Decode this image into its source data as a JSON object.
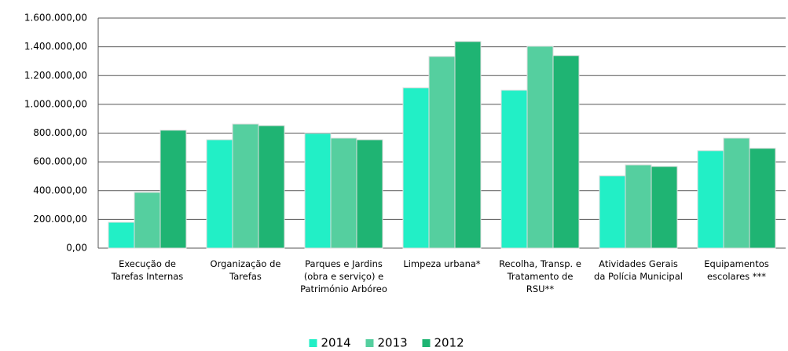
{
  "chart_data": {
    "type": "bar",
    "categories": [
      "Execução de Tarefas Internas",
      "Organização de Tarefas",
      "Parques e Jardins (obra e serviço) e Património Arbóreo",
      "Limpeza urbana*",
      "Recolha, Transp. e Tratamento de RSU**",
      "Atividades Gerais da Polícia Municipal",
      "Equipamentos escolares ***"
    ],
    "series": [
      {
        "name": "2014",
        "color": "#22efc6",
        "values": [
          180000,
          754000,
          798000,
          1115000,
          1098000,
          503000,
          678000
        ]
      },
      {
        "name": "2013",
        "color": "#55cf9f",
        "values": [
          388000,
          863000,
          765000,
          1333000,
          1404000,
          579000,
          765000
        ]
      },
      {
        "name": "2012",
        "color": "#1fb473",
        "values": [
          820000,
          852000,
          754000,
          1437000,
          1339000,
          568000,
          694000
        ]
      }
    ],
    "ylim": [
      0,
      1600000
    ],
    "yticks": [
      {
        "value": 0,
        "label": "0,00"
      },
      {
        "value": 200000,
        "label": "200.000,00"
      },
      {
        "value": 400000,
        "label": "400.000,00"
      },
      {
        "value": 600000,
        "label": "600.000,00"
      },
      {
        "value": 800000,
        "label": "800.000,00"
      },
      {
        "value": 1000000,
        "label": "1.000.000,00"
      },
      {
        "value": 1200000,
        "label": "1.200.000,00"
      },
      {
        "value": 1400000,
        "label": "1.400.000,00"
      },
      {
        "value": 1600000,
        "label": "1.600.000,00"
      }
    ],
    "grid": true,
    "legend": "bottom"
  }
}
